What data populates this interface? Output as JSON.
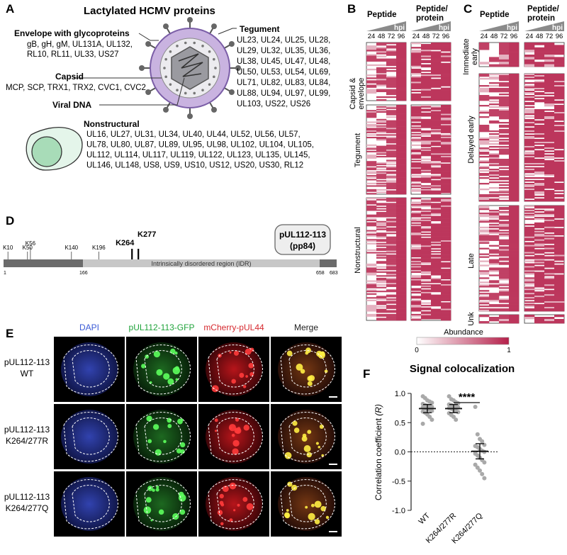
{
  "panelA": {
    "letter": "A",
    "title": "Lactylated HCMV proteins",
    "envelope": {
      "heading": "Envelope with glycoproteins",
      "lines": [
        "gB, gH, gM, UL131A, UL132,",
        "RL10, RL11, UL33, US27"
      ]
    },
    "capsid": {
      "heading": "Capsid",
      "lines": [
        "MCP, SCP, TRX1, TRX2, CVC1, CVC2"
      ]
    },
    "viral_dna": "Viral DNA",
    "tegument": {
      "heading": "Tegument",
      "lines": [
        "UL23, UL24, UL25, UL28,",
        "UL29, UL32, UL35, UL36,",
        "UL38, UL45, UL47, UL48,",
        "UL50, UL53, UL54, UL69,",
        "UL71, UL82, UL83, UL84,",
        "UL88, UL94, UL97, UL99,",
        "UL103, US22, US26"
      ]
    },
    "nonstructural": {
      "heading": "Nonstructural",
      "lines": [
        "UL16, UL27, UL31, UL34, UL40, UL44, UL52, UL56, UL57,",
        "UL78, UL80, UL87, UL89, UL95, UL98, UL102, UL104, UL105,",
        "UL112, UL114, UL117, UL119, UL122, UL123, UL135, UL145,",
        "UL146, UL148, US8, US9, US10, US12, US20, US30, RL12"
      ]
    }
  },
  "panelB": {
    "letter": "B",
    "col1": "Peptide",
    "col2": [
      "Peptide/",
      "protein"
    ],
    "hpi": "hpi",
    "timepoints": [
      "24",
      "48",
      "72",
      "96"
    ],
    "groups": [
      "Capsid &",
      "envelope",
      "Tegument",
      "Nonstructural"
    ]
  },
  "panelC": {
    "letter": "C",
    "col1": "Peptide",
    "col2": [
      "Peptide/",
      "protein"
    ],
    "hpi": "hpi",
    "timepoints": [
      "24",
      "48",
      "72",
      "96"
    ],
    "groups": [
      "Immediate",
      "early",
      "Delayed early",
      "Late",
      "Unk"
    ]
  },
  "legend": {
    "title": "Abundance",
    "min": "0",
    "max": "1"
  },
  "panelD": {
    "letter": "D",
    "sites": [
      "K10",
      "K50",
      "K56",
      "K140",
      "K196"
    ],
    "bold_sites": [
      "K277",
      "K264"
    ],
    "idr_label": "Intrinsically disordered region (IDR)",
    "positions": [
      "1",
      "166",
      "658",
      "683"
    ],
    "protein": [
      "pUL112-113",
      "(pp84)"
    ]
  },
  "panelE": {
    "letter": "E",
    "columns": [
      "DAPI",
      "pUL112-113-GFP",
      "mCherry-pUL44",
      "Merge"
    ],
    "column_colors": [
      "#3b5bd6",
      "#1fa33a",
      "#d6282e",
      "#222222"
    ],
    "rows": [
      [
        "pUL112-113",
        "WT"
      ],
      [
        "pUL112-113",
        "K264/277R"
      ],
      [
        "pUL112-113",
        "K264/277Q"
      ]
    ]
  },
  "panelF": {
    "letter": "F",
    "title": "Signal colocalization",
    "ylabel": "Correlation coefficient",
    "ylabel_var": "(R)",
    "significance": "****",
    "chart_data": {
      "type": "scatter",
      "title": "Signal colocalization",
      "ylabel": "Correlation coefficient (R)",
      "categories": [
        "WT",
        "K264/277R",
        "K264/277Q"
      ],
      "ylim": [
        -1.0,
        1.0
      ],
      "yticks": [
        "1.0",
        "0.5",
        "0.0",
        "-0.5",
        "-1.0"
      ],
      "means": [
        0.74,
        0.74,
        0.01
      ],
      "ci": [
        [
          0.67,
          0.81
        ],
        [
          0.67,
          0.81
        ],
        [
          -0.12,
          0.14
        ]
      ],
      "points": [
        [
          0.95,
          0.92,
          0.88,
          0.86,
          0.84,
          0.82,
          0.8,
          0.79,
          0.78,
          0.77,
          0.76,
          0.75,
          0.73,
          0.72,
          0.7,
          0.69,
          0.67,
          0.64,
          0.6,
          0.55,
          0.48
        ],
        [
          0.95,
          0.9,
          0.88,
          0.85,
          0.83,
          0.81,
          0.8,
          0.78,
          0.77,
          0.76,
          0.75,
          0.74,
          0.72,
          0.7,
          0.68,
          0.66,
          0.63,
          0.6,
          0.55
        ],
        [
          0.77,
          0.3,
          0.22,
          0.18,
          0.12,
          0.1,
          0.08,
          0.05,
          0.02,
          0.0,
          -0.03,
          -0.06,
          -0.1,
          -0.14,
          -0.18,
          -0.22,
          -0.27,
          -0.32,
          -0.38,
          -0.45
        ]
      ],
      "reference_line": 0.0
    }
  }
}
